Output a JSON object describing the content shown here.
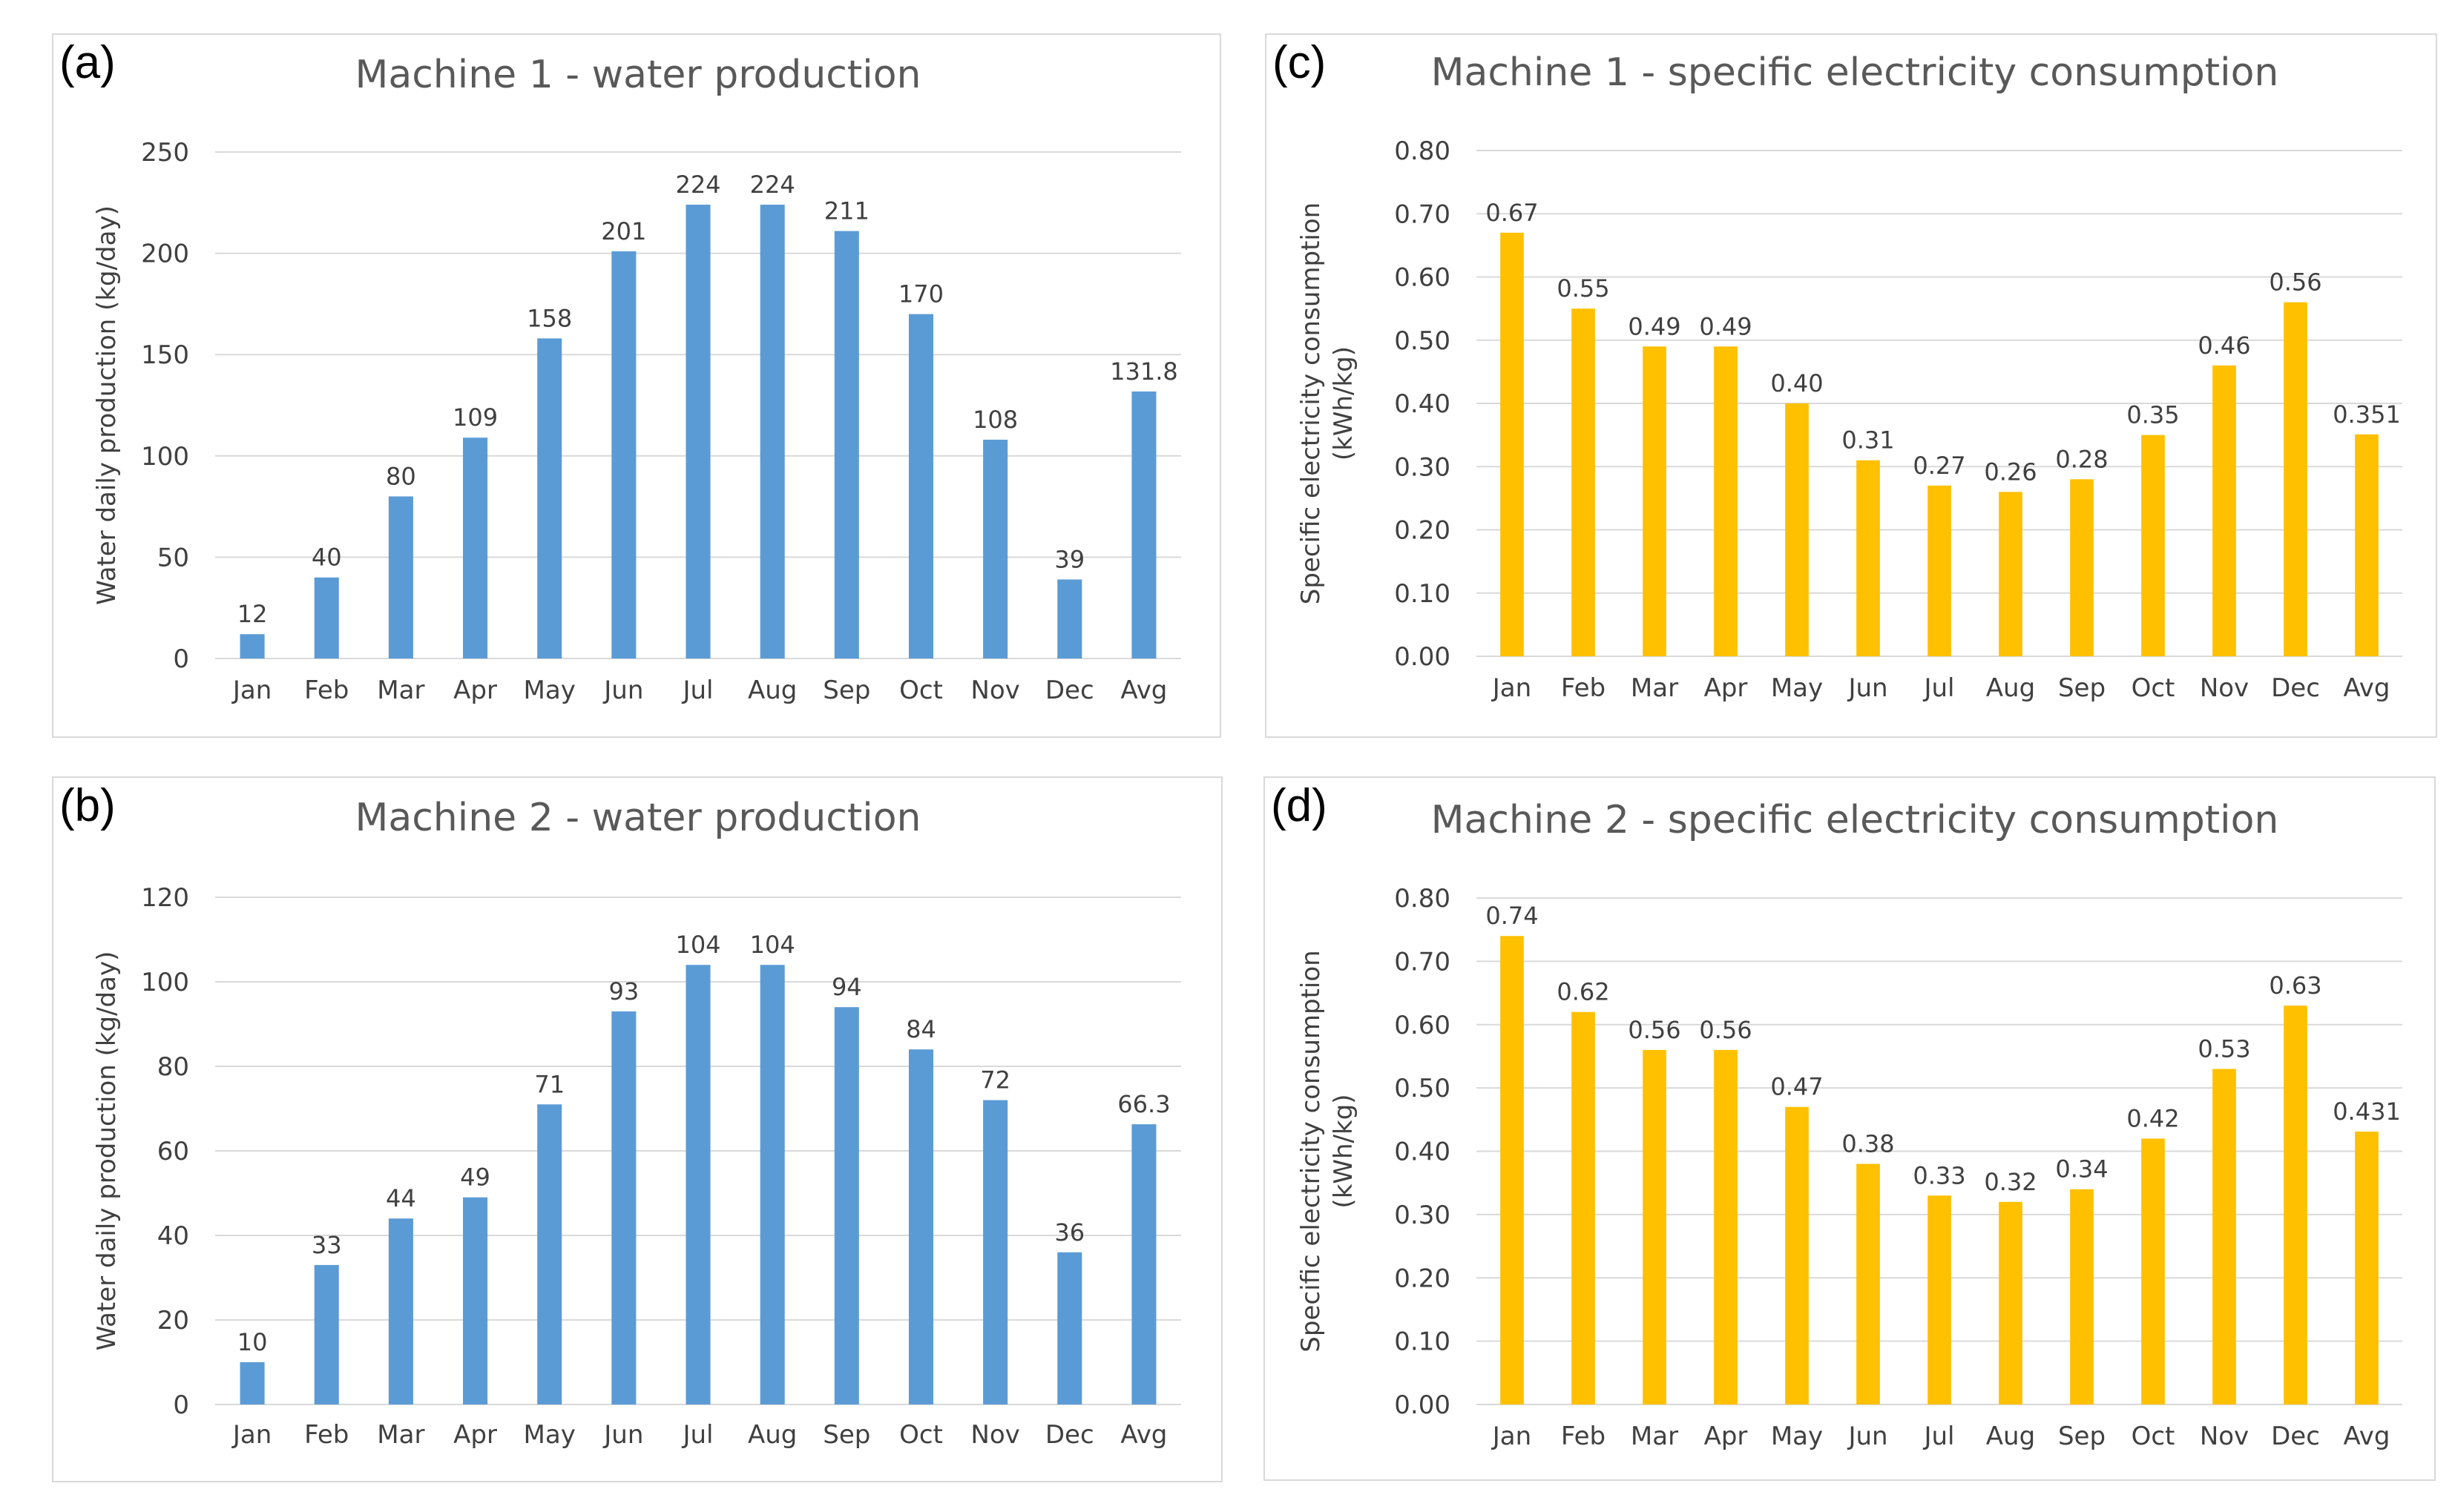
{
  "figure": {
    "panels": [
      {
        "letter": "(a)",
        "chart_index": 0
      },
      {
        "letter": "(b)",
        "chart_index": 1
      },
      {
        "letter": "(c)",
        "chart_index": 2
      },
      {
        "letter": "(d)",
        "chart_index": 3
      }
    ]
  },
  "colors": {
    "production": "#5b9bd5",
    "consumption": "#ffc000"
  },
  "chart_data": [
    {
      "id": "a",
      "type": "bar",
      "title": "Machine 1 - water production",
      "ylabel": "Water daily production (kg/day)",
      "ylabel_lines": [
        "Water daily production (kg/day)"
      ],
      "xlabel": "",
      "categories": [
        "Jan",
        "Feb",
        "Mar",
        "Apr",
        "May",
        "Jun",
        "Jul",
        "Aug",
        "Sep",
        "Oct",
        "Nov",
        "Dec",
        "Avg"
      ],
      "values": [
        12,
        40,
        80,
        109,
        158,
        201,
        224,
        224,
        211,
        170,
        108,
        39,
        131.8
      ],
      "labels": [
        "12",
        "40",
        "80",
        "109",
        "158",
        "201",
        "224",
        "224",
        "211",
        "170",
        "108",
        "39",
        "131.8"
      ],
      "ylim": [
        0,
        250
      ],
      "yticks": [
        "0",
        "50",
        "100",
        "150",
        "200",
        "250"
      ],
      "grid": true,
      "color": "#5b9bd5"
    },
    {
      "id": "b",
      "type": "bar",
      "title": "Machine 2 - water production",
      "ylabel": "Water daily production (kg/day)",
      "ylabel_lines": [
        "Water daily production (kg/day)"
      ],
      "xlabel": "",
      "categories": [
        "Jan",
        "Feb",
        "Mar",
        "Apr",
        "May",
        "Jun",
        "Jul",
        "Aug",
        "Sep",
        "Oct",
        "Nov",
        "Dec",
        "Avg"
      ],
      "values": [
        10,
        33,
        44,
        49,
        71,
        93,
        104,
        104,
        94,
        84,
        72,
        36,
        66.3
      ],
      "labels": [
        "10",
        "33",
        "44",
        "49",
        "71",
        "93",
        "104",
        "104",
        "94",
        "84",
        "72",
        "36",
        "66.3"
      ],
      "ylim": [
        0,
        120
      ],
      "yticks": [
        "0",
        "20",
        "40",
        "60",
        "80",
        "100",
        "120"
      ],
      "grid": true,
      "color": "#5b9bd5"
    },
    {
      "id": "c",
      "type": "bar",
      "title": "Machine 1 - specific electricity consumption",
      "ylabel": "Specific electricity consumption (kWh/kg)",
      "ylabel_lines": [
        "Specific electricity consumption",
        "(kWh/kg)"
      ],
      "xlabel": "",
      "categories": [
        "Jan",
        "Feb",
        "Mar",
        "Apr",
        "May",
        "Jun",
        "Jul",
        "Aug",
        "Sep",
        "Oct",
        "Nov",
        "Dec",
        "Avg"
      ],
      "values": [
        0.67,
        0.55,
        0.49,
        0.49,
        0.4,
        0.31,
        0.27,
        0.26,
        0.28,
        0.35,
        0.46,
        0.56,
        0.351
      ],
      "labels": [
        "0.67",
        "0.55",
        "0.49",
        "0.49",
        "0.40",
        "0.31",
        "0.27",
        "0.26",
        "0.28",
        "0.35",
        "0.46",
        "0.56",
        "0.351"
      ],
      "ylim": [
        0,
        0.8
      ],
      "yticks": [
        "0.00",
        "0.10",
        "0.20",
        "0.30",
        "0.40",
        "0.50",
        "0.60",
        "0.70",
        "0.80"
      ],
      "grid": true,
      "color": "#ffc000"
    },
    {
      "id": "d",
      "type": "bar",
      "title": "Machine 2 - specific electricity consumption",
      "ylabel": "Specific electricity consumption (kWh/kg)",
      "ylabel_lines": [
        "Specific electricity consumption",
        "(kWh/kg)"
      ],
      "xlabel": "",
      "categories": [
        "Jan",
        "Feb",
        "Mar",
        "Apr",
        "May",
        "Jun",
        "Jul",
        "Aug",
        "Sep",
        "Oct",
        "Nov",
        "Dec",
        "Avg"
      ],
      "values": [
        0.74,
        0.62,
        0.56,
        0.56,
        0.47,
        0.38,
        0.33,
        0.32,
        0.34,
        0.42,
        0.53,
        0.63,
        0.431
      ],
      "labels": [
        "0.74",
        "0.62",
        "0.56",
        "0.56",
        "0.47",
        "0.38",
        "0.33",
        "0.32",
        "0.34",
        "0.42",
        "0.53",
        "0.63",
        "0.431"
      ],
      "ylim": [
        0,
        0.8
      ],
      "yticks": [
        "0.00",
        "0.10",
        "0.20",
        "0.30",
        "0.40",
        "0.50",
        "0.60",
        "0.70",
        "0.80"
      ],
      "grid": true,
      "color": "#ffc000"
    }
  ]
}
